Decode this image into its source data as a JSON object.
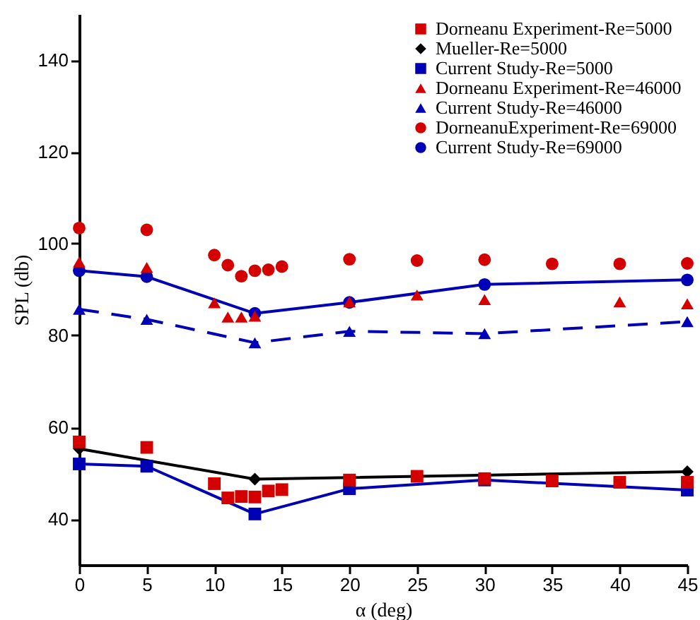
{
  "chart_data": {
    "type": "line",
    "xlabel": "α (deg)",
    "ylabel": "SPL (db)",
    "xlim": [
      0,
      45
    ],
    "ylim": [
      30,
      150
    ],
    "xticks": [
      0,
      5,
      10,
      15,
      20,
      25,
      30,
      35,
      40,
      45
    ],
    "yticks": [
      40,
      60,
      80,
      100,
      120,
      140
    ],
    "grid": false,
    "legend": "top right",
    "series": [
      {
        "name": "Dorneanu Experiment-Re=5000",
        "type": "scatter",
        "marker": "square",
        "color": "#d40000",
        "x": [
          0,
          5,
          10,
          11,
          12,
          13,
          14,
          15,
          20,
          25,
          30,
          35,
          40,
          45
        ],
        "values": [
          56.8,
          55.6,
          47.7,
          44.6,
          44.9,
          44.8,
          46.1,
          46.4,
          48.5,
          49.3,
          48.8,
          48.3,
          48.0,
          48.0
        ]
      },
      {
        "name": "Mueller-Re=5000",
        "type": "line",
        "marker": "diamond",
        "line_style": "solid",
        "color": "#000000",
        "x": [
          0,
          13,
          45
        ],
        "values": [
          55.3,
          48.7,
          50.3
        ]
      },
      {
        "name": "Current Study-Re=5000",
        "type": "line",
        "marker": "square",
        "line_style": "solid",
        "color": "#0000b4",
        "x": [
          0,
          5,
          13,
          20,
          30,
          45
        ],
        "values": [
          52.0,
          51.5,
          41.1,
          46.6,
          48.5,
          46.3
        ]
      },
      {
        "name": "Dorneanu Experiment-Re=46000",
        "type": "scatter",
        "marker": "triangle",
        "color": "#d40000",
        "x": [
          0,
          5,
          10,
          11,
          12,
          13,
          20,
          25,
          30,
          40,
          45
        ],
        "values": [
          96.0,
          94.8,
          87.1,
          84.0,
          84.0,
          84.2,
          87.3,
          88.8,
          87.8,
          87.3,
          86.9
        ]
      },
      {
        "name": "Current Study-Re=46000",
        "type": "line",
        "marker": "triangle",
        "line_style": "dashed",
        "color": "#0000b4",
        "x": [
          0,
          5,
          13,
          20,
          30,
          45
        ],
        "values": [
          85.7,
          83.5,
          78.4,
          80.9,
          80.4,
          83.0
        ]
      },
      {
        "name": "DorneanuExperiment-Re=69000",
        "type": "scatter",
        "marker": "circle",
        "color": "#d40000",
        "x": [
          0,
          5,
          10,
          11,
          12,
          13,
          14,
          15,
          20,
          25,
          30,
          35,
          40,
          45
        ],
        "values": [
          103.4,
          103.0,
          97.5,
          95.3,
          92.9,
          94.1,
          94.3,
          95.0,
          96.6,
          96.3,
          96.5,
          95.6,
          95.6,
          95.7
        ]
      },
      {
        "name": "Current Study-Re=69000",
        "type": "line",
        "marker": "circle",
        "line_style": "solid",
        "color": "#0000b4",
        "x": [
          0,
          5,
          13,
          20,
          30,
          45
        ],
        "values": [
          94.1,
          92.8,
          84.8,
          87.2,
          91.1,
          92.1
        ]
      }
    ]
  }
}
